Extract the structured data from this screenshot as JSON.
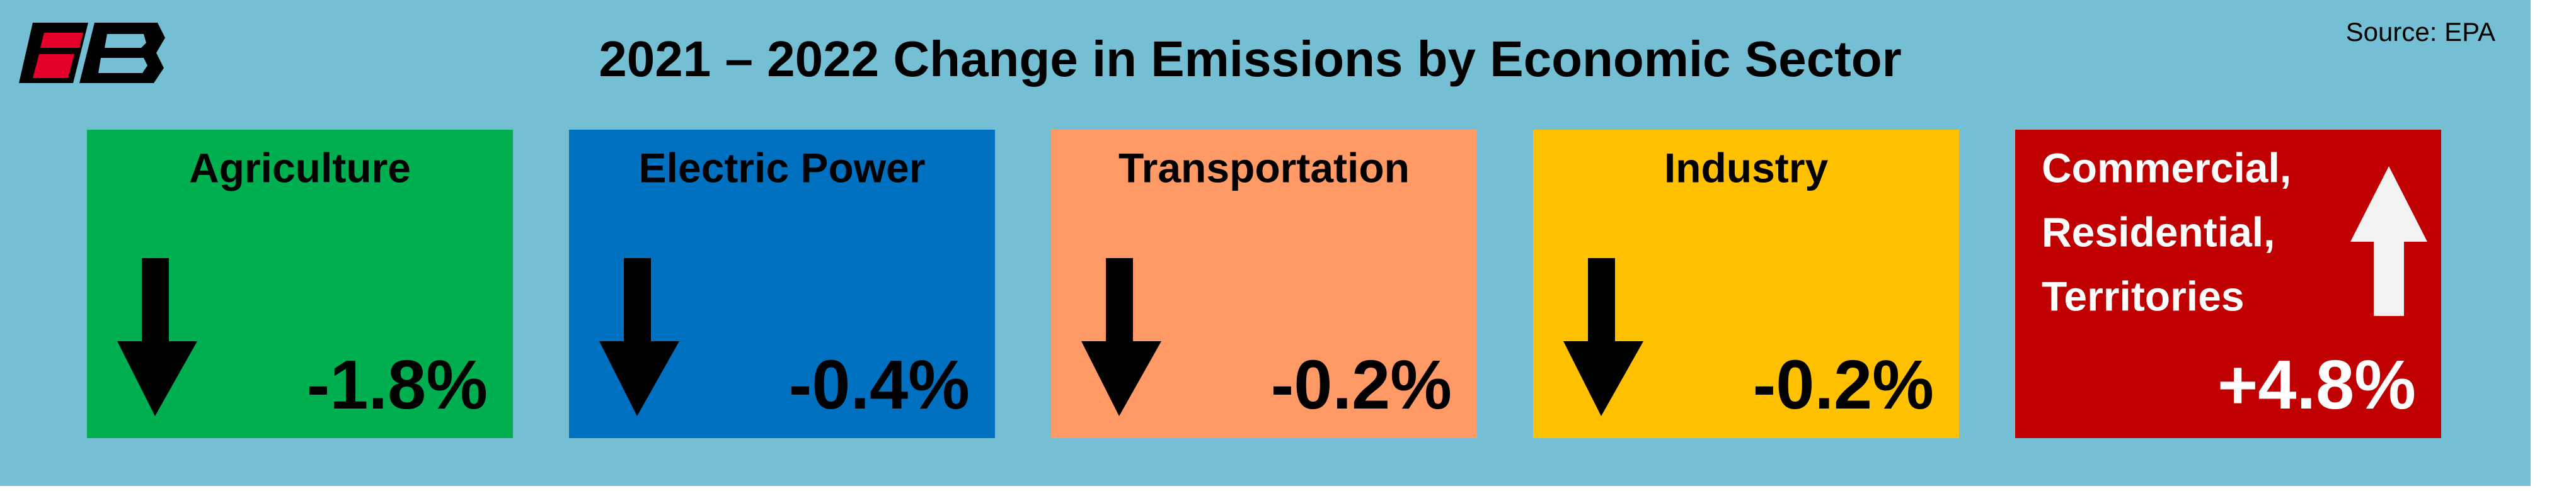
{
  "header": {
    "title": "2021 – 2022 Change in Emissions by Economic Sector",
    "source": "Source: EPA"
  },
  "sectors": [
    {
      "name_lines": [
        "Agriculture"
      ],
      "change": "-1.8%",
      "direction": "down",
      "color": "#00b050",
      "text_color": "#000000"
    },
    {
      "name_lines": [
        "Electric Power"
      ],
      "change": "-0.4%",
      "direction": "down",
      "color": "#0070c0",
      "text_color": "#000000"
    },
    {
      "name_lines": [
        "Transportation"
      ],
      "change": "-0.2%",
      "direction": "down",
      "color": "#ff9966",
      "text_color": "#000000"
    },
    {
      "name_lines": [
        "Industry"
      ],
      "change": "-0.2%",
      "direction": "down",
      "color": "#ffc000",
      "text_color": "#000000"
    },
    {
      "name_lines": [
        "Commercial,",
        "Residential,",
        "Territories"
      ],
      "change": "+4.8%",
      "direction": "up",
      "color": "#c00000",
      "text_color": "#ffffff"
    }
  ]
}
